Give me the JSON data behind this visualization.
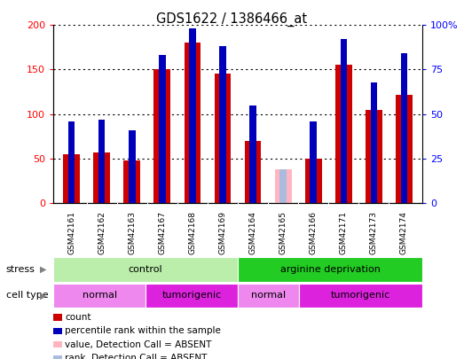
{
  "title": "GDS1622 / 1386466_at",
  "samples": [
    "GSM42161",
    "GSM42162",
    "GSM42163",
    "GSM42167",
    "GSM42168",
    "GSM42169",
    "GSM42164",
    "GSM42165",
    "GSM42166",
    "GSM42171",
    "GSM42173",
    "GSM42174"
  ],
  "count_values": [
    55,
    57,
    48,
    150,
    180,
    145,
    70,
    0,
    50,
    155,
    105,
    122
  ],
  "rank_values": [
    46,
    47,
    41,
    83,
    98,
    88,
    55,
    0,
    46,
    92,
    68,
    84
  ],
  "absent_value_val": 38,
  "absent_rank_val": 19,
  "is_absent": [
    false,
    false,
    false,
    false,
    false,
    false,
    false,
    true,
    false,
    false,
    false,
    false
  ],
  "ylim_left": [
    0,
    200
  ],
  "ylim_right": [
    0,
    100
  ],
  "yticks_left": [
    0,
    50,
    100,
    150,
    200
  ],
  "ytick_labels_left": [
    "0",
    "50",
    "100",
    "150",
    "200"
  ],
  "yticks_right": [
    0,
    25,
    50,
    75,
    100
  ],
  "ytick_labels_right": [
    "0",
    "25",
    "50",
    "75",
    "100%"
  ],
  "count_color": "#cc0000",
  "rank_color": "#0000bb",
  "absent_value_color": "#ffb6c1",
  "absent_rank_color": "#aabbdd",
  "bar_width": 0.55,
  "rank_bar_width": 0.22,
  "stress_groups": [
    {
      "label": "control",
      "start": 0,
      "end": 6,
      "color": "#bbeeaa"
    },
    {
      "label": "arginine deprivation",
      "start": 6,
      "end": 12,
      "color": "#22cc22"
    }
  ],
  "cell_type_groups": [
    {
      "label": "normal",
      "start": 0,
      "end": 3,
      "color": "#ee88ee"
    },
    {
      "label": "tumorigenic",
      "start": 3,
      "end": 6,
      "color": "#dd22dd"
    },
    {
      "label": "normal",
      "start": 6,
      "end": 8,
      "color": "#ee88ee"
    },
    {
      "label": "tumorigenic",
      "start": 8,
      "end": 12,
      "color": "#dd22dd"
    }
  ],
  "legend_items": [
    {
      "label": "count",
      "color": "#cc0000"
    },
    {
      "label": "percentile rank within the sample",
      "color": "#0000bb"
    },
    {
      "label": "value, Detection Call = ABSENT",
      "color": "#ffb6c1"
    },
    {
      "label": "rank, Detection Call = ABSENT",
      "color": "#aabbdd"
    }
  ],
  "xlabel_bg": "#d0d0d0",
  "plot_bg": "#ffffff",
  "fig_bg": "#ffffff"
}
